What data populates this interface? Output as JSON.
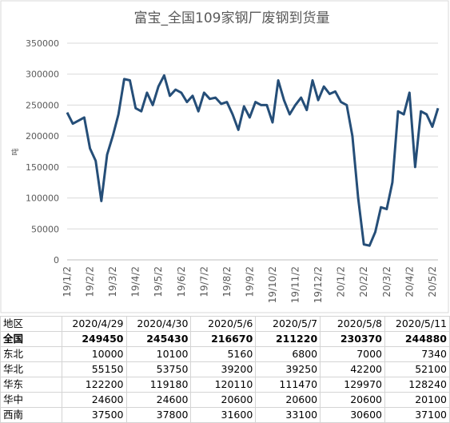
{
  "chart_data": {
    "type": "line",
    "title": "富宝_全国109家钢厂废钢到货量",
    "y_label": "吨",
    "categories": [
      "19/1/2",
      null,
      null,
      null,
      "19/2/2",
      null,
      null,
      null,
      "19/3/2",
      null,
      null,
      null,
      "19/4/2",
      null,
      null,
      null,
      "19/5/2",
      null,
      null,
      null,
      "19/6/2",
      null,
      null,
      null,
      "19/7/2",
      null,
      null,
      null,
      "19/8/2",
      null,
      null,
      null,
      "19/9/2",
      null,
      null,
      null,
      "19/10/2",
      null,
      null,
      null,
      "19/11/2",
      null,
      null,
      null,
      "19/12/2",
      null,
      null,
      null,
      "20/1/2",
      null,
      null,
      null,
      "20/2/2",
      null,
      null,
      null,
      "20/3/2",
      null,
      null,
      null,
      "20/4/2",
      null,
      null,
      null,
      "20/5/2",
      null
    ],
    "series": [
      {
        "name": "全国",
        "color": "#254e78",
        "values": [
          238000,
          220000,
          225000,
          230000,
          180000,
          160000,
          95000,
          170000,
          200000,
          235000,
          292000,
          290000,
          245000,
          240000,
          270000,
          250000,
          280000,
          298000,
          265000,
          275000,
          270000,
          255000,
          265000,
          240000,
          270000,
          260000,
          262000,
          252000,
          255000,
          235000,
          210000,
          248000,
          230000,
          255000,
          250000,
          250000,
          222000,
          290000,
          258000,
          235000,
          250000,
          262000,
          242000,
          290000,
          258000,
          280000,
          268000,
          272000,
          255000,
          250000,
          200000,
          100000,
          25000,
          23000,
          45000,
          85000,
          82000,
          125000,
          240000,
          235000,
          270000,
          150000,
          240000,
          235000,
          215000,
          245000
        ]
      }
    ],
    "ylim": [
      0,
      350000
    ],
    "yticks": [
      0,
      50000,
      100000,
      150000,
      200000,
      250000,
      300000,
      350000
    ],
    "grid": true
  },
  "table": {
    "header": [
      "地区",
      "2020/4/29",
      "2020/4/30",
      "2020/5/6",
      "2020/5/7",
      "2020/5/8",
      "2020/5/11"
    ],
    "rows": [
      [
        "全国",
        249450,
        245430,
        216670,
        211220,
        230370,
        244880
      ],
      [
        "东北",
        10000,
        10100,
        5160,
        6800,
        7000,
        7340
      ],
      [
        "华北",
        55150,
        53750,
        39200,
        39250,
        42200,
        52100
      ],
      [
        "华东",
        122200,
        119180,
        120110,
        111470,
        129970,
        128240
      ],
      [
        "华中",
        24600,
        24600,
        20600,
        20600,
        20600,
        20100
      ],
      [
        "西南",
        37500,
        37800,
        31600,
        33100,
        30600,
        37100
      ]
    ]
  }
}
